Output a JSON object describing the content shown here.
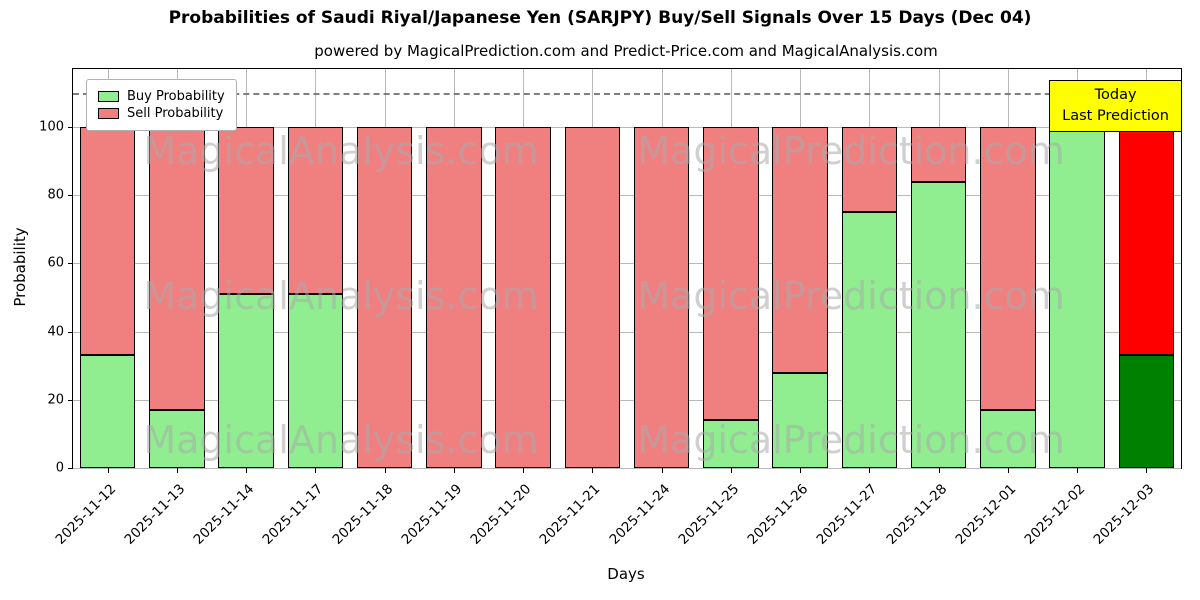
{
  "title": "Probabilities of Saudi Riyal/Japanese Yen (SARJPY) Buy/Sell Signals Over 15 Days (Dec 04)",
  "subtitle": "powered by MagicalPrediction.com and Predict-Price.com and MagicalAnalysis.com",
  "axes": {
    "xlabel": "Days",
    "ylabel": "Probability"
  },
  "legend": {
    "buy_label": "Buy Probability",
    "sell_label": "Sell Probability"
  },
  "annotation": {
    "line1": "Today",
    "line2": "Last Prediction",
    "bg_color": "#ffff00"
  },
  "watermarks": [
    "MagicalAnalysis.com",
    "MagicalPrediction.com"
  ],
  "colors": {
    "buy": "#90ee90",
    "sell": "#f08080",
    "buy_today": "#008000",
    "sell_today": "#ff0000",
    "grid": "#b8b8b8",
    "dashed_line": "#7f7f7f",
    "bar_edge": "#000000"
  },
  "chart_data": {
    "type": "bar",
    "stacked": true,
    "categories": [
      "2025-11-12",
      "2025-11-13",
      "2025-11-14",
      "2025-11-17",
      "2025-11-18",
      "2025-11-19",
      "2025-11-20",
      "2025-11-21",
      "2025-11-24",
      "2025-11-25",
      "2025-11-26",
      "2025-11-27",
      "2025-11-28",
      "2025-12-01",
      "2025-12-02",
      "2025-12-03"
    ],
    "series": [
      {
        "name": "Buy Probability",
        "values": [
          33,
          17,
          51,
          51,
          0,
          0,
          0,
          0,
          0,
          14,
          28,
          75,
          84,
          17,
          100,
          33
        ]
      },
      {
        "name": "Sell Probability",
        "values": [
          67,
          83,
          49,
          49,
          100,
          100,
          100,
          100,
          100,
          86,
          72,
          25,
          16,
          83,
          0,
          67
        ]
      }
    ],
    "today_index": 15,
    "ylim": [
      0,
      117
    ],
    "yticks": [
      0,
      20,
      40,
      60,
      80,
      100
    ],
    "dashed_line_y": 110,
    "grid": true,
    "legend_position": "upper left",
    "bar_width_ratio": 0.8
  }
}
